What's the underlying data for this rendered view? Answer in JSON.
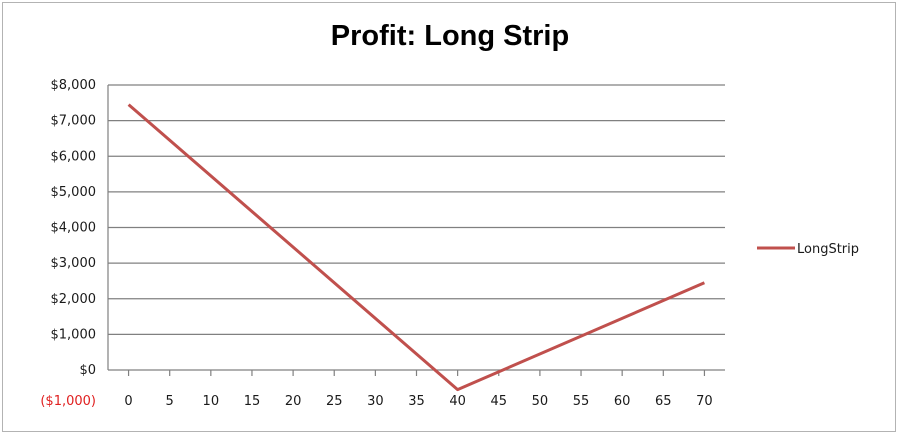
{
  "chart_data": {
    "type": "line",
    "title": "Profit: Long Strip",
    "xlabel": "",
    "ylabel": "",
    "x": [
      0,
      40,
      70
    ],
    "x_ticks": [
      "0",
      "5",
      "10",
      "15",
      "20",
      "25",
      "30",
      "35",
      "40",
      "45",
      "50",
      "55",
      "60",
      "65",
      "70"
    ],
    "x_range": [
      -2.5,
      72.5
    ],
    "y_ticks": [
      "$8,000",
      "$7,000",
      "$6,000",
      "$5,000",
      "$4,000",
      "$3,000",
      "$2,000",
      "$1,000",
      "$0",
      "($1,000)"
    ],
    "ylim": [
      -1000,
      8000
    ],
    "series": [
      {
        "name": "LongStrip",
        "x": [
          0,
          40,
          70
        ],
        "values": [
          7450,
          -550,
          2450
        ]
      }
    ],
    "grid": true,
    "legend_position": "right",
    "colors": {
      "series": "#c0504d",
      "negative_tick": "#e02020",
      "grid": "#808080"
    }
  }
}
